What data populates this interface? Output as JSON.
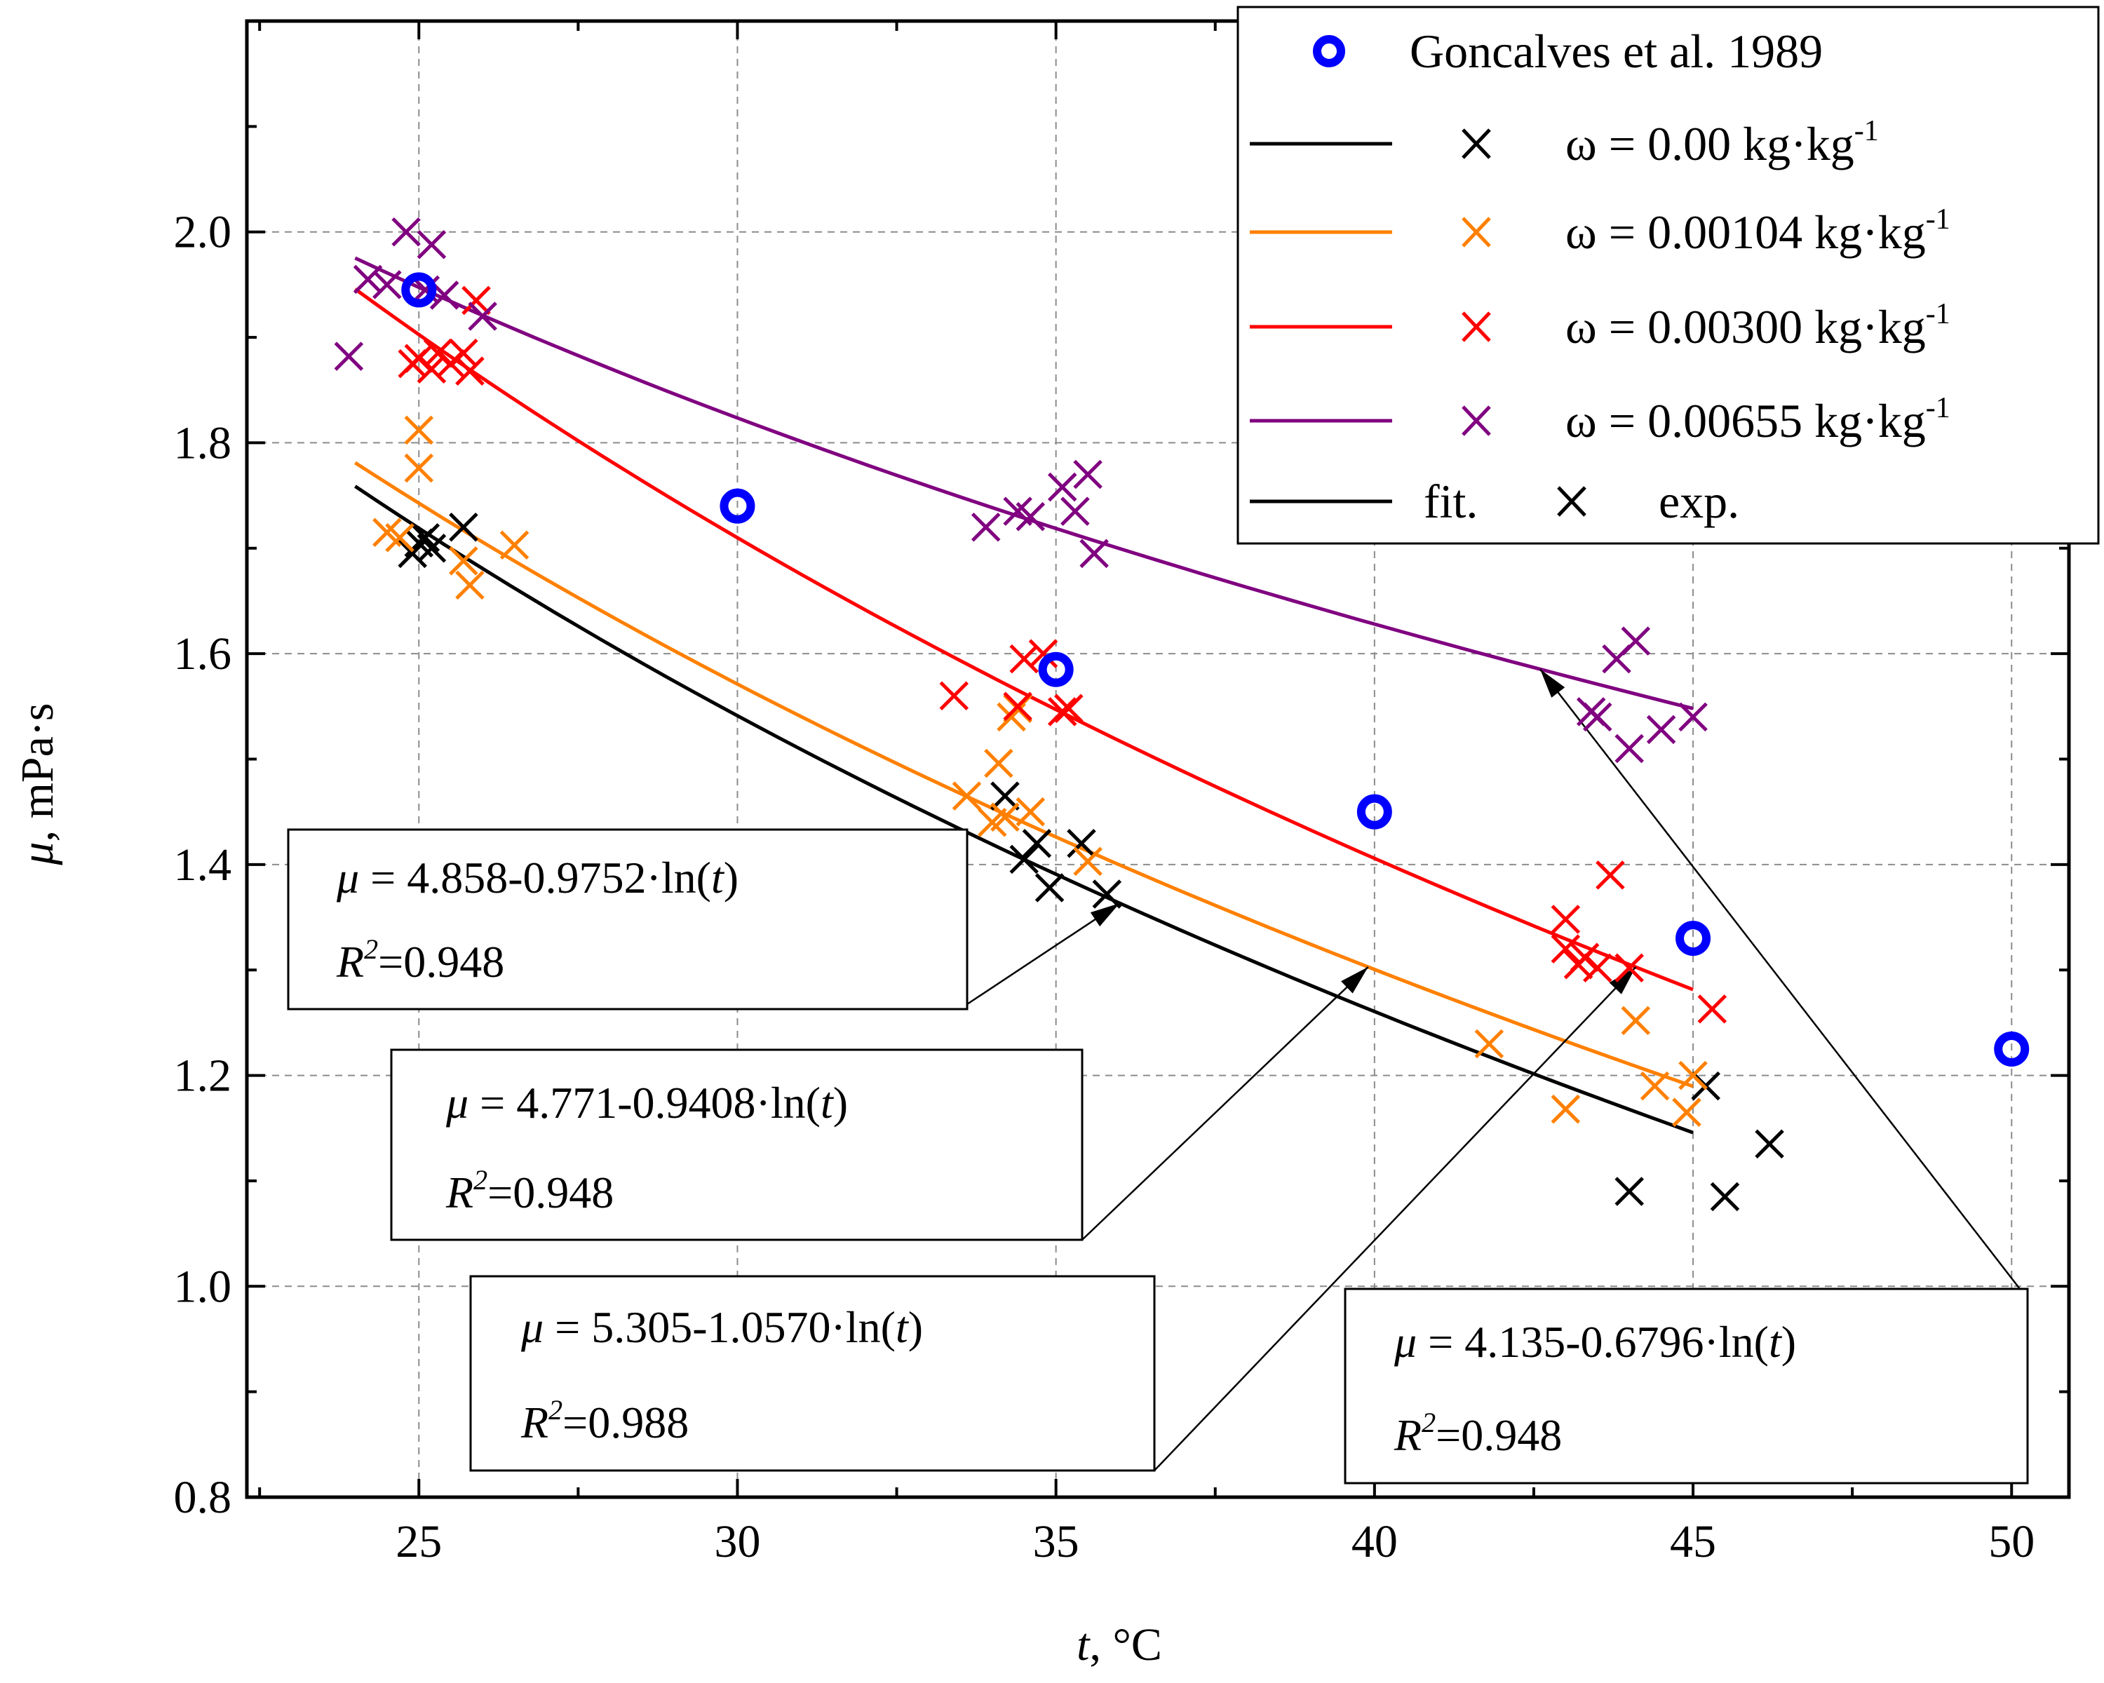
{
  "chart_data": {
    "type": "scatter",
    "xlabel": "t, °C",
    "ylabel": "μ, mPa·s",
    "xlim": [
      22.3,
      50.9
    ],
    "ylim": [
      0.8,
      2.2
    ],
    "grid": true,
    "x_ticks": [
      25,
      30,
      35,
      40,
      45,
      50
    ],
    "y_ticks": [
      0.8,
      1.0,
      1.2,
      1.4,
      1.6,
      1.8,
      2.0
    ],
    "x_minor_ticks": [
      22.5,
      27.5,
      32.5,
      37.5,
      42.5,
      47.5
    ],
    "y_minor_ticks": [
      0.9,
      1.1,
      1.3,
      1.5,
      1.7,
      1.9,
      2.1
    ],
    "legend": {
      "placement": "top-right",
      "goncalves": "Goncalves et al. 1989",
      "fit_label": "fit.",
      "exp_label": "exp.",
      "entries": [
        {
          "prefix": "ω = 0.00 kg·kg",
          "sup": "-1",
          "color": "#000000"
        },
        {
          "prefix": "ω = 0.00104 kg·kg",
          "sup": "-1",
          "color": "#ff8000"
        },
        {
          "prefix": "ω = 0.00300 kg·kg",
          "sup": "-1",
          "color": "#ff0000"
        },
        {
          "prefix": "ω = 0.00655 kg·kg",
          "sup": "-1",
          "color": "#800080"
        }
      ]
    },
    "reference": {
      "name": "Goncalves et al. 1989",
      "color": "#0000ff",
      "points": [
        [
          25.0,
          1.945
        ],
        [
          30.0,
          1.74
        ],
        [
          35.0,
          1.585
        ],
        [
          40.0,
          1.45
        ],
        [
          45.0,
          1.33
        ],
        [
          50.0,
          1.225
        ]
      ]
    },
    "series": [
      {
        "name": "ω = 0.00 kg·kg-1",
        "color": "#000000",
        "fit": {
          "a": 4.858,
          "b": 0.9752,
          "x_range": [
            24.0,
            45.0
          ]
        },
        "points": [
          [
            24.9,
            1.695
          ],
          [
            25.0,
            1.705
          ],
          [
            25.1,
            1.71
          ],
          [
            25.2,
            1.7
          ],
          [
            25.7,
            1.72
          ],
          [
            34.2,
            1.465
          ],
          [
            34.5,
            1.405
          ],
          [
            34.7,
            1.42
          ],
          [
            34.9,
            1.378
          ],
          [
            35.4,
            1.42
          ],
          [
            35.8,
            1.372
          ],
          [
            44.0,
            1.09
          ],
          [
            45.2,
            1.19
          ],
          [
            45.5,
            1.085
          ],
          [
            46.2,
            1.135
          ]
        ]
      },
      {
        "name": "ω = 0.00104 kg·kg-1",
        "color": "#ff8000",
        "fit": {
          "a": 4.771,
          "b": 0.9408,
          "x_range": [
            24.0,
            45.0
          ]
        },
        "points": [
          [
            24.5,
            1.715
          ],
          [
            24.7,
            1.71
          ],
          [
            25.0,
            1.812
          ],
          [
            25.0,
            1.776
          ],
          [
            25.7,
            1.688
          ],
          [
            25.8,
            1.665
          ],
          [
            26.5,
            1.703
          ],
          [
            33.6,
            1.465
          ],
          [
            34.0,
            1.44
          ],
          [
            34.1,
            1.496
          ],
          [
            34.2,
            1.445
          ],
          [
            34.3,
            1.54
          ],
          [
            34.4,
            1.548
          ],
          [
            34.6,
            1.45
          ],
          [
            35.5,
            1.403
          ],
          [
            41.8,
            1.23
          ],
          [
            43.0,
            1.168
          ],
          [
            44.1,
            1.252
          ],
          [
            44.4,
            1.19
          ],
          [
            44.9,
            1.165
          ],
          [
            45.0,
            1.2
          ]
        ]
      },
      {
        "name": "ω = 0.00300 kg·kg-1",
        "color": "#ff0000",
        "fit": {
          "a": 5.305,
          "b": 1.057,
          "x_range": [
            24.0,
            45.0
          ]
        },
        "points": [
          [
            24.9,
            1.875
          ],
          [
            25.0,
            1.88
          ],
          [
            25.2,
            1.87
          ],
          [
            25.3,
            1.885
          ],
          [
            25.5,
            1.875
          ],
          [
            25.7,
            1.885
          ],
          [
            25.8,
            1.868
          ],
          [
            25.9,
            1.935
          ],
          [
            33.4,
            1.56
          ],
          [
            34.4,
            1.55
          ],
          [
            34.5,
            1.595
          ],
          [
            34.8,
            1.6
          ],
          [
            35.1,
            1.545
          ],
          [
            35.2,
            1.548
          ],
          [
            43.0,
            1.348
          ],
          [
            43.0,
            1.32
          ],
          [
            43.2,
            1.305
          ],
          [
            43.3,
            1.312
          ],
          [
            43.5,
            1.302
          ],
          [
            43.7,
            1.39
          ],
          [
            44.0,
            1.302
          ],
          [
            45.3,
            1.263
          ]
        ]
      },
      {
        "name": "ω = 0.00655 kg·kg-1",
        "color": "#800080",
        "fit": {
          "a": 4.135,
          "b": 0.6796,
          "x_range": [
            24.0,
            45.0
          ]
        },
        "points": [
          [
            23.9,
            1.882
          ],
          [
            24.2,
            1.955
          ],
          [
            24.5,
            1.95
          ],
          [
            24.8,
            2.0
          ],
          [
            25.1,
            1.945
          ],
          [
            25.2,
            1.988
          ],
          [
            25.4,
            1.94
          ],
          [
            26.0,
            1.92
          ],
          [
            33.9,
            1.72
          ],
          [
            34.4,
            1.735
          ],
          [
            34.6,
            1.73
          ],
          [
            35.1,
            1.758
          ],
          [
            35.3,
            1.735
          ],
          [
            35.5,
            1.77
          ],
          [
            35.6,
            1.695
          ],
          [
            43.4,
            1.545
          ],
          [
            43.5,
            1.54
          ],
          [
            43.8,
            1.595
          ],
          [
            44.0,
            1.51
          ],
          [
            44.1,
            1.612
          ],
          [
            44.5,
            1.528
          ],
          [
            45.0,
            1.54
          ]
        ]
      }
    ],
    "annotations": [
      {
        "coef": "4.858-0.9752·ln(",
        "r2": "=0.948"
      },
      {
        "coef": "4.771-0.9408·ln(",
        "r2": "=0.948"
      },
      {
        "coef": "5.305-1.0570·ln(",
        "r2": "=0.988"
      },
      {
        "coef": "4.135-0.6796·ln(",
        "r2": "=0.948"
      }
    ]
  }
}
